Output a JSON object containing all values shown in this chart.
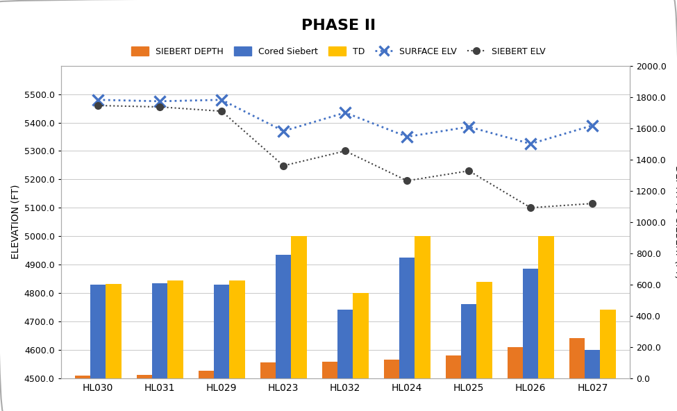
{
  "categories": [
    "HL030",
    "HL031",
    "HL029",
    "HL023",
    "HL032",
    "HL024",
    "HL025",
    "HL026",
    "HL027"
  ],
  "siebert_depth": [
    4508,
    4512,
    4527,
    4555,
    4558,
    4565,
    4580,
    4610,
    4640
  ],
  "cored_siebert": [
    4830,
    4835,
    4828,
    4935,
    4740,
    4925,
    4760,
    4885,
    4600
  ],
  "total_depth": [
    4832,
    4845,
    4845,
    5000,
    4800,
    5000,
    4840,
    5000,
    4740
  ],
  "surface_elv": [
    5480,
    5475,
    5480,
    5370,
    5435,
    5350,
    5385,
    5325,
    5390
  ],
  "siebert_elv": [
    5460,
    5455,
    5440,
    5248,
    5300,
    5195,
    5230,
    5100,
    5115
  ],
  "title": "PHASE II",
  "ylabel_left": "ELEVATION (FT)",
  "ylabel_right": "DEPTH TO SIEBERT (FT)",
  "ylim_left": [
    4500,
    5600
  ],
  "ylim_right": [
    0,
    2000
  ],
  "bar_bottom": 4500,
  "bar_color_siebert": "#E87722",
  "bar_color_cored": "#4472C4",
  "bar_color_td": "#FFC000",
  "line_color_surface": "#4472C4",
  "line_color_siebert_elv": "#404040",
  "bg_color": "#FFFFFF",
  "plot_bg_color": "#FFFFFF",
  "grid_color": "#C8C8C8",
  "yticks_left": [
    4500,
    4600,
    4700,
    4800,
    4900,
    5000,
    5100,
    5200,
    5300,
    5400,
    5500
  ],
  "yticks_right": [
    0.0,
    200.0,
    400.0,
    600.0,
    800.0,
    1000.0,
    1200.0,
    1400.0,
    1600.0,
    1800.0,
    2000.0
  ]
}
